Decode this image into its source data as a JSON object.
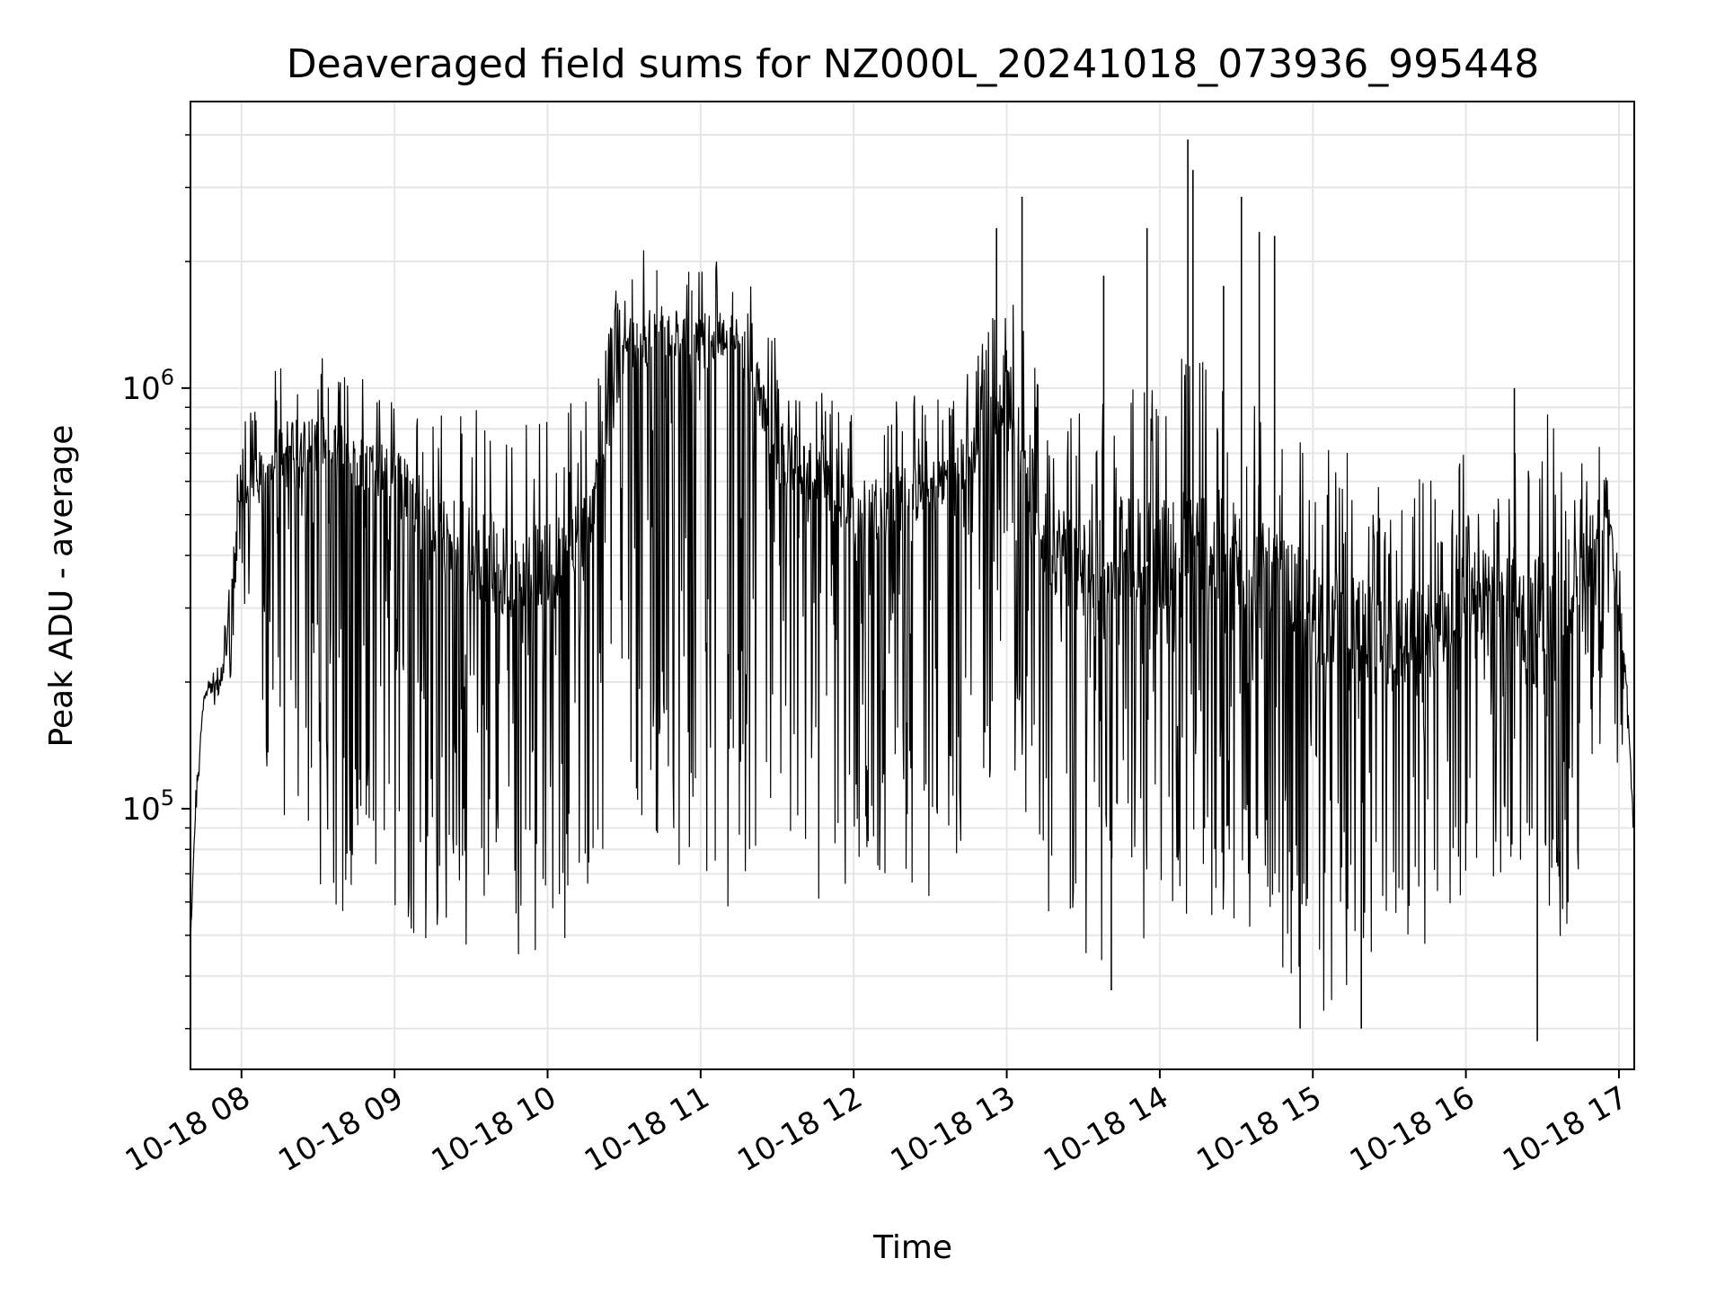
{
  "chart_data": {
    "type": "line",
    "title": "Deaveraged field sums for NZ000L_20241018_073936_995448",
    "xlabel": "Time",
    "ylabel": "Peak ADU - average",
    "y_scale": "log",
    "grid": true,
    "line_color": "#000000",
    "grid_color": "#e6e6e6",
    "xlim": [
      "2024-10-18 07:40",
      "2024-10-18 17:06"
    ],
    "ylim": [
      24000,
      4800000
    ],
    "x_ticks": [
      {
        "time": "2024-10-18 08:00",
        "label": "10-18 08"
      },
      {
        "time": "2024-10-18 09:00",
        "label": "10-18 09"
      },
      {
        "time": "2024-10-18 10:00",
        "label": "10-18 10"
      },
      {
        "time": "2024-10-18 11:00",
        "label": "10-18 11"
      },
      {
        "time": "2024-10-18 12:00",
        "label": "10-18 12"
      },
      {
        "time": "2024-10-18 13:00",
        "label": "10-18 13"
      },
      {
        "time": "2024-10-18 14:00",
        "label": "10-18 14"
      },
      {
        "time": "2024-10-18 15:00",
        "label": "10-18 15"
      },
      {
        "time": "2024-10-18 16:00",
        "label": "10-18 16"
      },
      {
        "time": "2024-10-18 17:00",
        "label": "10-18 17"
      }
    ],
    "y_major_ticks": [
      {
        "value": 100000,
        "base": "10",
        "exp": "5"
      },
      {
        "value": 1000000,
        "base": "10",
        "exp": "6"
      }
    ],
    "series": [
      {
        "x": [
          "2024-10-18 07:40",
          "2024-10-18 07:42",
          "2024-10-18 07:45",
          "2024-10-18 07:48",
          "2024-10-18 07:52",
          "2024-10-18 07:56",
          "2024-10-18 07:58",
          "2024-10-18 08:00",
          "2024-10-18 08:05",
          "2024-10-18 08:15",
          "2024-10-18 08:30",
          "2024-10-18 08:45",
          "2024-10-18 09:00",
          "2024-10-18 09:15",
          "2024-10-18 09:30",
          "2024-10-18 09:45",
          "2024-10-18 10:00",
          "2024-10-18 10:15",
          "2024-10-18 10:30",
          "2024-10-18 10:45",
          "2024-10-18 11:00",
          "2024-10-18 11:15",
          "2024-10-18 11:30",
          "2024-10-18 11:45",
          "2024-10-18 12:00",
          "2024-10-18 12:15",
          "2024-10-18 12:30",
          "2024-10-18 12:45",
          "2024-10-18 13:00",
          "2024-10-18 13:15",
          "2024-10-18 13:30",
          "2024-10-18 13:45",
          "2024-10-18 14:00",
          "2024-10-18 14:15",
          "2024-10-18 14:30",
          "2024-10-18 14:45",
          "2024-10-18 15:00",
          "2024-10-18 15:15",
          "2024-10-18 15:30",
          "2024-10-18 15:45",
          "2024-10-18 16:00",
          "2024-10-18 16:15",
          "2024-10-18 16:30",
          "2024-10-18 16:45",
          "2024-10-18 16:55",
          "2024-10-18 17:00",
          "2024-10-18 17:03",
          "2024-10-18 17:06"
        ],
        "center": [
          48000,
          100000,
          180000,
          200000,
          195000,
          300000,
          500000,
          550000,
          620000,
          700000,
          720000,
          650000,
          580000,
          450000,
          380000,
          350000,
          350000,
          450000,
          1200000,
          1300000,
          1250000,
          1300000,
          700000,
          600000,
          480000,
          520000,
          560000,
          650000,
          1000000,
          420000,
          350000,
          400000,
          380000,
          400000,
          350000,
          330000,
          280000,
          250000,
          230000,
          250000,
          300000,
          310000,
          250000,
          350000,
          550000,
          280000,
          200000,
          85000
        ],
        "low": [
          45000,
          90000,
          170000,
          180000,
          170000,
          200000,
          300000,
          350000,
          150000,
          90000,
          60000,
          55000,
          55000,
          45000,
          42000,
          45000,
          45000,
          48000,
          120000,
          60000,
          55000,
          50000,
          50000,
          45000,
          65000,
          70000,
          60000,
          80000,
          150000,
          50000,
          45000,
          42000,
          55000,
          52000,
          50000,
          45000,
          32000,
          35000,
          35000,
          45000,
          55000,
          70000,
          32000,
          70000,
          150000,
          120000,
          150000,
          80000
        ],
        "high": [
          50000,
          110000,
          190000,
          210000,
          220000,
          400000,
          700000,
          800000,
          1000000,
          1150000,
          1200000,
          1150000,
          1050000,
          950000,
          950000,
          900000,
          850000,
          1000000,
          2100000,
          2200000,
          2100000,
          2000000,
          1350000,
          1000000,
          900000,
          1000000,
          950000,
          1100000,
          1900000,
          1000000,
          950000,
          1000000,
          1100000,
          1300000,
          1200000,
          800000,
          750000,
          700000,
          600000,
          620000,
          720000,
          750000,
          950000,
          720000,
          850000,
          400000,
          220000,
          90000
        ],
        "spikes": [
          {
            "time": "2024-10-18 12:56",
            "value": 2400000
          },
          {
            "time": "2024-10-18 13:06",
            "value": 2850000
          },
          {
            "time": "2024-10-18 13:38",
            "value": 1850000
          },
          {
            "time": "2024-10-18 13:55",
            "value": 2400000
          },
          {
            "time": "2024-10-18 14:11",
            "value": 3900000
          },
          {
            "time": "2024-10-18 14:13",
            "value": 3300000
          },
          {
            "time": "2024-10-18 14:25",
            "value": 1750000
          },
          {
            "time": "2024-10-18 14:32",
            "value": 2850000
          },
          {
            "time": "2024-10-18 14:39",
            "value": 2350000
          },
          {
            "time": "2024-10-18 14:45",
            "value": 2300000
          },
          {
            "time": "2024-10-18 16:19",
            "value": 1000000
          },
          {
            "time": "2024-10-18 14:55",
            "value": 30000
          },
          {
            "time": "2024-10-18 16:28",
            "value": 28000
          },
          {
            "time": "2024-10-18 15:19",
            "value": 30000
          },
          {
            "time": "2024-10-18 13:41",
            "value": 37000
          }
        ]
      }
    ]
  }
}
